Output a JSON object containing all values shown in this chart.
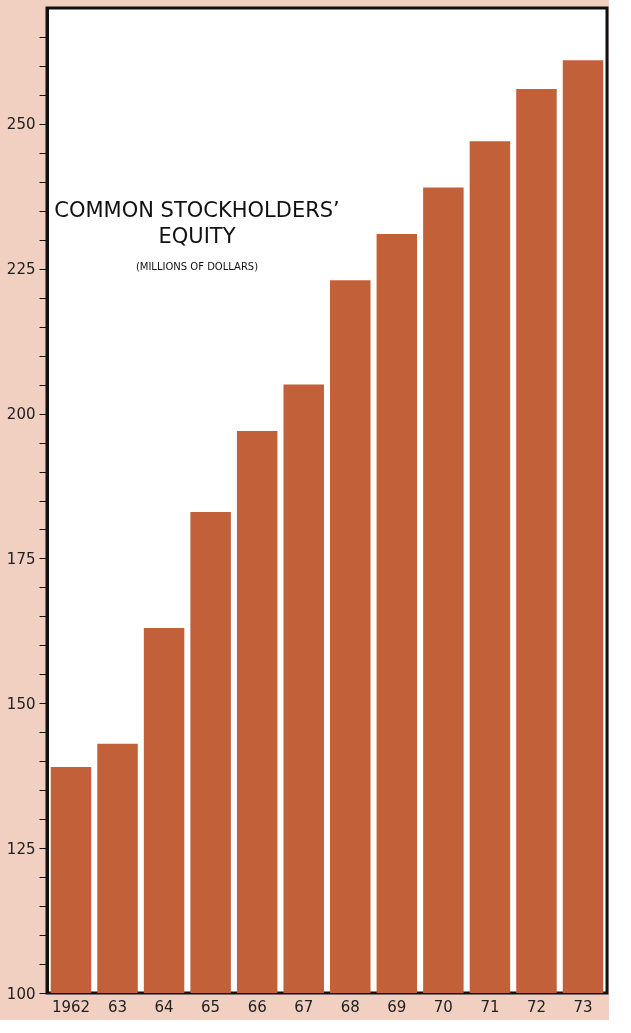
{
  "chart_data": {
    "type": "bar",
    "title": "COMMON STOCKHOLDERS’ EQUITY",
    "subtitle": "(MILLIONS OF DOLLARS)",
    "categories": [
      "1962",
      "63",
      "64",
      "65",
      "66",
      "67",
      "68",
      "69",
      "70",
      "71",
      "72",
      "73"
    ],
    "values": [
      139,
      143,
      163,
      183,
      197,
      205,
      223,
      231,
      239,
      247,
      256,
      261
    ],
    "color": "#c2603a",
    "ylim": [
      100,
      270
    ],
    "yticks": [
      100,
      {
        "value": 105,
        "label": null
      },
      {
        "value": 110,
        "label": null
      },
      {
        "value": 115,
        "label": null
      },
      {
        "value": 120,
        "label": null
      },
      125,
      {
        "value": 130,
        "label": null
      },
      {
        "value": 135,
        "label": null
      },
      {
        "value": 140,
        "label": null
      },
      {
        "value": 145,
        "label": null
      },
      150,
      {
        "value": 155,
        "label": null
      },
      {
        "value": 160,
        "label": null
      },
      {
        "value": 165,
        "label": null
      },
      {
        "value": 170,
        "label": null
      },
      175,
      {
        "value": 180,
        "label": null
      },
      {
        "value": 185,
        "label": null
      },
      {
        "value": 190,
        "label": null
      },
      {
        "value": 195,
        "label": null
      },
      200,
      {
        "value": 205,
        "label": null
      },
      {
        "value": 210,
        "label": null
      },
      {
        "value": 215,
        "label": null
      },
      {
        "value": 220,
        "label": null
      },
      225,
      {
        "value": 230,
        "label": null
      },
      {
        "value": 235,
        "label": null
      },
      {
        "value": 240,
        "label": null
      },
      {
        "value": 245,
        "label": null
      },
      250,
      {
        "value": 255,
        "label": null
      },
      {
        "value": 260,
        "label": null
      },
      {
        "value": 265,
        "label": null
      }
    ],
    "grid": false
  }
}
